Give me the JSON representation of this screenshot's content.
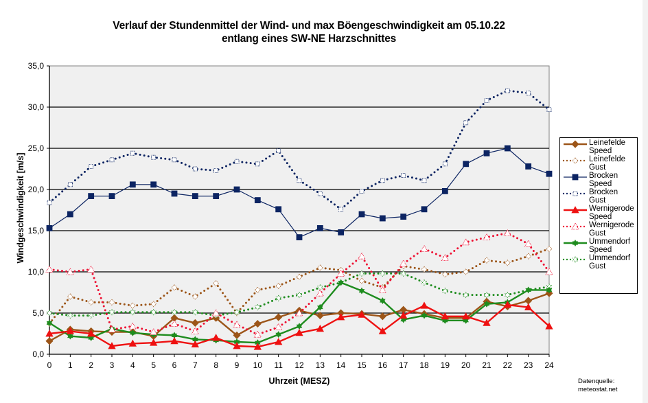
{
  "chart_data": {
    "type": "line",
    "title": "Verlauf der Stundenmittel der Wind- und max Böengeschwindigkeit am 05.10.22",
    "subtitle": "entlang eines SW-NE Harzschnittes",
    "xlabel": "Uhrzeit (MESZ)",
    "ylabel": "Windgeschwindigkeit [m/s]",
    "ylim": [
      0,
      35
    ],
    "xlim": [
      0,
      24
    ],
    "yticks": [
      "0,0",
      "5,0",
      "10,0",
      "15,0",
      "20,0",
      "25,0",
      "30,0",
      "35,0"
    ],
    "ytick_values": [
      0,
      5,
      10,
      15,
      20,
      25,
      30,
      35
    ],
    "x": [
      0,
      1,
      2,
      3,
      4,
      5,
      6,
      7,
      8,
      9,
      10,
      11,
      12,
      13,
      14,
      15,
      16,
      17,
      18,
      19,
      20,
      21,
      22,
      23,
      24
    ],
    "xticks": [
      "0",
      "1",
      "2",
      "3",
      "4",
      "5",
      "6",
      "7",
      "8",
      "9",
      "10",
      "11",
      "12",
      "13",
      "14",
      "15",
      "16",
      "17",
      "18",
      "19",
      "20",
      "21",
      "22",
      "23",
      "24"
    ],
    "grid": "horizontal",
    "legend_position": "right",
    "series": [
      {
        "name": "Leinefelde Speed",
        "legend": [
          "Leinefelde",
          "Speed"
        ],
        "color": "#9c5518",
        "style": "solid",
        "marker": "diamond",
        "values": [
          1.6,
          3.0,
          2.8,
          2.7,
          2.7,
          2.2,
          4.4,
          3.8,
          4.4,
          2.3,
          3.7,
          4.5,
          5.3,
          4.7,
          5.0,
          4.9,
          4.6,
          5.4,
          4.9,
          4.4,
          4.4,
          6.4,
          5.8,
          6.5,
          7.4
        ]
      },
      {
        "name": "Leinefelde Gust",
        "legend": [
          "Leinefelde",
          "Gust"
        ],
        "color": "#9c5518",
        "style": "dotted",
        "marker": "diamond-open",
        "values": [
          3.7,
          7.0,
          6.3,
          6.3,
          5.9,
          6.1,
          8.1,
          7.0,
          8.6,
          5.0,
          7.8,
          8.3,
          9.4,
          10.5,
          10.2,
          8.9,
          8.1,
          10.7,
          10.3,
          9.7,
          10.0,
          11.4,
          11.1,
          11.9,
          12.8
        ]
      },
      {
        "name": "Brocken Speed",
        "legend": [
          "Brocken",
          "Speed"
        ],
        "color": "#0c2462",
        "style": "solid-thin",
        "marker": "square",
        "values": [
          15.3,
          17.0,
          19.2,
          19.2,
          20.6,
          20.6,
          19.5,
          19.2,
          19.2,
          20.0,
          18.7,
          17.6,
          14.2,
          15.3,
          14.8,
          17.0,
          16.5,
          16.7,
          17.6,
          19.8,
          23.1,
          24.4,
          25.0,
          22.8,
          21.9
        ]
      },
      {
        "name": "Brocken Gust",
        "legend": [
          "Brocken Gust"
        ],
        "color": "#0c2462",
        "style": "dotted",
        "marker": "square-open",
        "values": [
          18.4,
          20.6,
          22.8,
          23.6,
          24.4,
          23.9,
          23.6,
          22.5,
          22.3,
          23.4,
          23.1,
          24.7,
          21.1,
          19.5,
          17.6,
          19.8,
          21.1,
          21.7,
          21.1,
          23.1,
          28.1,
          30.8,
          32.0,
          31.7,
          29.7
        ]
      },
      {
        "name": "Wernigerode Speed",
        "legend": [
          "Wernigerode",
          "Speed"
        ],
        "color": "#ee1111",
        "style": "solid",
        "marker": "triangle",
        "values": [
          2.5,
          2.8,
          2.5,
          1.0,
          1.3,
          1.4,
          1.6,
          1.2,
          2.0,
          1.0,
          0.9,
          1.5,
          2.6,
          3.1,
          4.5,
          4.8,
          2.8,
          4.7,
          5.9,
          4.6,
          4.6,
          3.8,
          6.0,
          5.7,
          3.4
        ]
      },
      {
        "name": "Wernigerode Gust",
        "legend": [
          "Wernigerode",
          "Gust"
        ],
        "color": "#ee1133",
        "style": "dotted",
        "marker": "triangle-open",
        "values": [
          10.3,
          10.0,
          10.3,
          3.0,
          3.4,
          2.7,
          3.7,
          2.8,
          5.0,
          3.6,
          2.4,
          3.3,
          5.0,
          7.4,
          9.8,
          11.9,
          7.8,
          11.0,
          12.8,
          11.7,
          13.6,
          14.2,
          14.7,
          13.4,
          10.0
        ]
      },
      {
        "name": "Ummendorf Speed",
        "legend": [
          "Ummendorf",
          "Speed"
        ],
        "color": "#1e8c1e",
        "style": "solid",
        "marker": "star",
        "values": [
          3.8,
          2.2,
          2.0,
          3.1,
          2.6,
          2.4,
          2.3,
          1.8,
          1.7,
          1.5,
          1.4,
          2.4,
          3.4,
          5.7,
          8.7,
          7.7,
          6.5,
          4.2,
          4.7,
          4.1,
          4.1,
          6.1,
          6.3,
          7.8,
          7.8
        ]
      },
      {
        "name": "Ummendorf Gust",
        "legend": [
          "Ummendorf",
          "Gust"
        ],
        "color": "#1e8c1e",
        "style": "dotted",
        "marker": "star-open",
        "values": [
          5.0,
          4.7,
          4.7,
          5.1,
          5.1,
          5.1,
          5.1,
          5.1,
          4.7,
          5.1,
          5.7,
          6.8,
          7.2,
          8.1,
          8.7,
          9.8,
          9.8,
          9.8,
          8.7,
          7.7,
          7.2,
          7.2,
          7.2,
          7.8,
          8.2
        ]
      }
    ]
  },
  "source": {
    "line1": "Datenquelle:",
    "line2": "meteostat.net"
  },
  "colors": {
    "plot_background": "#f0f0f0",
    "gridline": "#000000"
  }
}
